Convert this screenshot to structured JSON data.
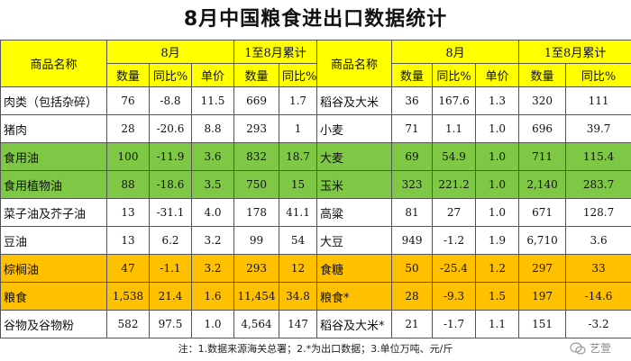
{
  "title": "8月中国粮食进出口数据统计",
  "header": {
    "name_label": "商品名称",
    "month_label": "8月",
    "cumulative_label": "1至8月累计",
    "qty": "数量",
    "yoy": "同比%",
    "price": "单价"
  },
  "rows": [
    {
      "left": {
        "name": "肉类（包括杂碎）",
        "qty": "76",
        "yoy": "-8.8",
        "price": "11.5",
        "cum_qty": "669",
        "cum_yoy": "1.7"
      },
      "right": {
        "name": "稻谷及大米",
        "qty": "36",
        "yoy": "167.6",
        "price": "1.3",
        "cum_qty": "320",
        "cum_yoy": "111"
      },
      "hl": ""
    },
    {
      "left": {
        "name": "猪肉",
        "qty": "28",
        "yoy": "-20.6",
        "price": "8.8",
        "cum_qty": "293",
        "cum_yoy": "1"
      },
      "right": {
        "name": "小麦",
        "qty": "71",
        "yoy": "1.1",
        "price": "1.0",
        "cum_qty": "696",
        "cum_yoy": "39.7"
      },
      "hl": ""
    },
    {
      "left": {
        "name": "食用油",
        "qty": "100",
        "yoy": "-11.9",
        "price": "3.6",
        "cum_qty": "832",
        "cum_yoy": "18.7"
      },
      "right": {
        "name": "大麦",
        "qty": "69",
        "yoy": "54.9",
        "price": "1.0",
        "cum_qty": "711",
        "cum_yoy": "115.4"
      },
      "hl": "green"
    },
    {
      "left": {
        "name": "食用植物油",
        "qty": "88",
        "yoy": "-18.6",
        "price": "3.5",
        "cum_qty": "750",
        "cum_yoy": "15"
      },
      "right": {
        "name": "玉米",
        "qty": "323",
        "yoy": "221.2",
        "price": "1.0",
        "cum_qty": "2,140",
        "cum_yoy": "283.7"
      },
      "hl": "green"
    },
    {
      "left": {
        "name": "菜子油及芥子油",
        "qty": "13",
        "yoy": "-31.1",
        "price": "4.0",
        "cum_qty": "178",
        "cum_yoy": "41.1"
      },
      "right": {
        "name": "高粱",
        "qty": "81",
        "yoy": "27",
        "price": "1.0",
        "cum_qty": "671",
        "cum_yoy": "128.7"
      },
      "hl": ""
    },
    {
      "left": {
        "name": "豆油",
        "qty": "13",
        "yoy": "6.2",
        "price": "3.2",
        "cum_qty": "99",
        "cum_yoy": "54"
      },
      "right": {
        "name": "大豆",
        "qty": "949",
        "yoy": "-1.2",
        "price": "1.9",
        "cum_qty": "6,710",
        "cum_yoy": "3.6"
      },
      "hl": ""
    },
    {
      "left": {
        "name": "棕榈油",
        "qty": "47",
        "yoy": "-1.1",
        "price": "3.2",
        "cum_qty": "293",
        "cum_yoy": "12"
      },
      "right": {
        "name": "食糖",
        "qty": "50",
        "yoy": "-25.4",
        "price": "1.2",
        "cum_qty": "297",
        "cum_yoy": "33"
      },
      "hl": "orange"
    },
    {
      "left": {
        "name": "粮食",
        "qty": "1,538",
        "yoy": "21.4",
        "price": "1.6",
        "cum_qty": "11,454",
        "cum_yoy": "34.8"
      },
      "right": {
        "name": "粮食*",
        "qty": "28",
        "yoy": "-9.3",
        "price": "1.5",
        "cum_qty": "197",
        "cum_yoy": "-14.6"
      },
      "hl": "orange"
    },
    {
      "left": {
        "name": "谷物及谷物粉",
        "qty": "582",
        "yoy": "97.5",
        "price": "1.0",
        "cum_qty": "4,564",
        "cum_yoy": "147"
      },
      "right": {
        "name": "稻谷及大米*",
        "qty": "21",
        "yoy": "-1.7",
        "price": "1.1",
        "cum_qty": "151",
        "cum_yoy": "-3.2"
      },
      "hl": ""
    }
  ],
  "note": "注：1.数据来源海关总署；2.*为出口数据；3.单位万吨、元/斤",
  "watermark": "艺萱",
  "colors": {
    "header": "#ffff00",
    "green": "#7ec845",
    "orange": "#ffc000"
  }
}
